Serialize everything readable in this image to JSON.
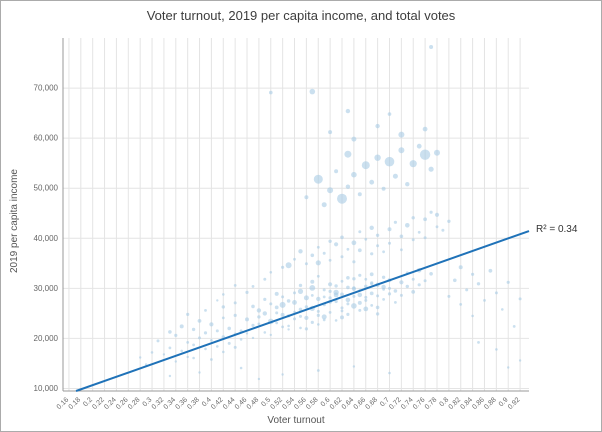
{
  "chart_data": {
    "type": "scatter",
    "title": "Voter turnout, 2019 per capita income, and total votes",
    "xlabel": "Voter turnout",
    "ylabel": "2019 per capita income",
    "xlim": [
      0.15,
      0.935
    ],
    "ylim": [
      9500,
      80000
    ],
    "grid": "on",
    "legend": "none",
    "x_ticks": [
      0.16,
      0.18,
      0.2,
      0.22,
      0.24,
      0.26,
      0.28,
      0.3,
      0.32,
      0.34,
      0.36,
      0.38,
      0.4,
      0.42,
      0.44,
      0.46,
      0.48,
      0.5,
      0.52,
      0.54,
      0.56,
      0.58,
      0.6,
      0.62,
      0.64,
      0.66,
      0.68,
      0.7,
      0.72,
      0.74,
      0.76,
      0.78,
      0.8,
      0.82,
      0.84,
      0.86,
      0.88,
      0.9,
      0.92
    ],
    "y_ticks": [
      10000,
      20000,
      30000,
      40000,
      50000,
      60000,
      70000
    ],
    "trendline": {
      "x1": 0.172,
      "y1": 9500,
      "x2": 0.935,
      "y2": 41450,
      "label": "R² = 0.34"
    },
    "colors": {
      "point": "#a9cce5",
      "point_opacity": 0.6,
      "trend": "#1f72b8",
      "grid": "#e4e4e4",
      "axis": "#999999",
      "tick_text": "#666666",
      "title_text": "#3d3d3d"
    },
    "points": [
      [
        0.45,
        21500,
        1.5
      ],
      [
        0.46,
        23800,
        2
      ],
      [
        0.47,
        20100,
        1.2
      ],
      [
        0.47,
        26400,
        1.8
      ],
      [
        0.48,
        22900,
        1.4
      ],
      [
        0.48,
        25600,
        2.2
      ],
      [
        0.49,
        21200,
        1.3
      ],
      [
        0.49,
        27800,
        1.6
      ],
      [
        0.5,
        23400,
        2.8
      ],
      [
        0.5,
        20700,
        1.2
      ],
      [
        0.51,
        25100,
        1.5
      ],
      [
        0.51,
        28900,
        2
      ],
      [
        0.52,
        22300,
        1.4
      ],
      [
        0.52,
        26700,
        3
      ],
      [
        0.53,
        24500,
        1.6
      ],
      [
        0.53,
        21800,
        1.2
      ],
      [
        0.54,
        27200,
        2.4
      ],
      [
        0.54,
        23900,
        1.5
      ],
      [
        0.55,
        25800,
        1.8
      ],
      [
        0.55,
        29400,
        2.6
      ],
      [
        0.55,
        22100,
        1.3
      ],
      [
        0.56,
        26300,
        1.7
      ],
      [
        0.56,
        24100,
        2.1
      ],
      [
        0.57,
        28600,
        1.4
      ],
      [
        0.57,
        23200,
        1.6
      ],
      [
        0.57,
        30100,
        2.9
      ],
      [
        0.58,
        25400,
        1.5
      ],
      [
        0.58,
        27900,
        2.2
      ],
      [
        0.58,
        22800,
        1.3
      ],
      [
        0.59,
        26800,
        1.8
      ],
      [
        0.59,
        29700,
        1.5
      ],
      [
        0.59,
        24300,
        2.5
      ],
      [
        0.6,
        28100,
        1.6
      ],
      [
        0.6,
        25200,
        1.4
      ],
      [
        0.6,
        30800,
        2.1
      ],
      [
        0.61,
        27400,
        1.7
      ],
      [
        0.61,
        23600,
        1.3
      ],
      [
        0.61,
        29200,
        2.7
      ],
      [
        0.62,
        26100,
        1.5
      ],
      [
        0.62,
        28800,
        1.9
      ],
      [
        0.62,
        31400,
        1.4
      ],
      [
        0.63,
        27700,
        2.3
      ],
      [
        0.63,
        24800,
        1.6
      ],
      [
        0.63,
        30200,
        1.8
      ],
      [
        0.64,
        28400,
        1.5
      ],
      [
        0.64,
        26500,
        2.8
      ],
      [
        0.64,
        31900,
        1.7
      ],
      [
        0.65,
        29600,
        1.4
      ],
      [
        0.65,
        27100,
        2
      ],
      [
        0.65,
        32600,
        1.6
      ],
      [
        0.66,
        30400,
        1.8
      ],
      [
        0.66,
        28200,
        1.5
      ],
      [
        0.66,
        25900,
        2.4
      ],
      [
        0.67,
        31100,
        1.6
      ],
      [
        0.67,
        29000,
        1.9
      ],
      [
        0.67,
        26600,
        1.4
      ],
      [
        0.68,
        30700,
        2.2
      ],
      [
        0.68,
        28500,
        1.5
      ],
      [
        0.69,
        32200,
        1.7
      ],
      [
        0.69,
        29800,
        1.4
      ],
      [
        0.7,
        31600,
        2
      ],
      [
        0.7,
        28900,
        1.6
      ],
      [
        0.46,
        21000,
        1.2
      ],
      [
        0.48,
        24300,
        1.7
      ],
      [
        0.5,
        26900,
        1.5
      ],
      [
        0.52,
        24700,
        2
      ],
      [
        0.54,
        25300,
        1.3
      ],
      [
        0.56,
        28100,
        2.5
      ],
      [
        0.58,
        24600,
        1.6
      ],
      [
        0.6,
        27300,
        1.9
      ],
      [
        0.62,
        25500,
        1.4
      ],
      [
        0.64,
        29900,
        2.1
      ],
      [
        0.66,
        27600,
        1.5
      ],
      [
        0.68,
        26200,
        1.8
      ],
      [
        0.45,
        19800,
        1.3
      ],
      [
        0.47,
        22600,
        1.6
      ],
      [
        0.49,
        25000,
        2.2
      ],
      [
        0.51,
        23100,
        1.4
      ],
      [
        0.53,
        27500,
        1.8
      ],
      [
        0.55,
        24400,
        1.5
      ],
      [
        0.57,
        26000,
        2.6
      ],
      [
        0.59,
        28300,
        1.4
      ],
      [
        0.61,
        30500,
        1.7
      ],
      [
        0.63,
        26900,
        1.5
      ],
      [
        0.65,
        28700,
        2.3
      ],
      [
        0.67,
        30900,
        1.6
      ],
      [
        0.69,
        27800,
        1.4
      ],
      [
        0.51,
        26200,
        1.9
      ],
      [
        0.54,
        29100,
        1.5
      ],
      [
        0.57,
        31300,
        2
      ],
      [
        0.6,
        29400,
        1.6
      ],
      [
        0.63,
        32100,
        1.8
      ],
      [
        0.66,
        31800,
        1.4
      ],
      [
        0.69,
        30300,
        2.2
      ],
      [
        0.52,
        28300,
        1.5
      ],
      [
        0.55,
        30600,
        1.7
      ],
      [
        0.58,
        32400,
        1.4
      ],
      [
        0.61,
        28700,
        2.4
      ],
      [
        0.64,
        30100,
        1.6
      ],
      [
        0.67,
        32800,
        1.9
      ],
      [
        0.7,
        30000,
        1.5
      ],
      [
        0.53,
        22500,
        1.3
      ],
      [
        0.56,
        21900,
        1.6
      ],
      [
        0.59,
        23700,
        1.4
      ],
      [
        0.62,
        24200,
        2
      ],
      [
        0.65,
        25600,
        1.5
      ],
      [
        0.68,
        24900,
        1.7
      ],
      [
        0.71,
        29500,
        1.8
      ],
      [
        0.71,
        27200,
        1.4
      ],
      [
        0.72,
        31200,
        2.1
      ],
      [
        0.72,
        28600,
        1.5
      ],
      [
        0.73,
        30400,
        1.7
      ],
      [
        0.73,
        33100,
        1.4
      ],
      [
        0.74,
        29300,
        1.9
      ],
      [
        0.74,
        31800,
        1.5
      ],
      [
        0.75,
        30700,
        1.6
      ],
      [
        0.75,
        33600,
        2.3
      ],
      [
        0.76,
        31500,
        1.5
      ],
      [
        0.77,
        32900,
        1.8
      ],
      [
        0.3,
        17200,
        1.3
      ],
      [
        0.31,
        19500,
        1.5
      ],
      [
        0.32,
        16800,
        1.2
      ],
      [
        0.33,
        21300,
        1.8
      ],
      [
        0.33,
        18100,
        1.4
      ],
      [
        0.34,
        20600,
        1.6
      ],
      [
        0.35,
        17500,
        1.3
      ],
      [
        0.35,
        22400,
        2
      ],
      [
        0.36,
        19200,
        1.4
      ],
      [
        0.36,
        16300,
        1.2
      ],
      [
        0.37,
        21800,
        1.7
      ],
      [
        0.37,
        18700,
        1.4
      ],
      [
        0.38,
        20100,
        1.5
      ],
      [
        0.38,
        23500,
        1.9
      ],
      [
        0.39,
        17900,
        1.3
      ],
      [
        0.39,
        21100,
        1.6
      ],
      [
        0.4,
        19600,
        1.4
      ],
      [
        0.4,
        22800,
        2.1
      ],
      [
        0.41,
        18400,
        1.3
      ],
      [
        0.41,
        21500,
        1.5
      ],
      [
        0.42,
        20300,
        1.7
      ],
      [
        0.42,
        24100,
        1.4
      ],
      [
        0.43,
        19000,
        1.5
      ],
      [
        0.43,
        22000,
        1.8
      ],
      [
        0.44,
        20900,
        1.4
      ],
      [
        0.44,
        24600,
        1.6
      ],
      [
        0.34,
        15400,
        1.2
      ],
      [
        0.37,
        16100,
        1.3
      ],
      [
        0.4,
        15800,
        1.4
      ],
      [
        0.42,
        17300,
        1.3
      ],
      [
        0.44,
        18200,
        1.5
      ],
      [
        0.36,
        24800,
        1.6
      ],
      [
        0.39,
        25600,
        1.4
      ],
      [
        0.42,
        26300,
        1.7
      ],
      [
        0.44,
        27100,
        1.5
      ],
      [
        0.52,
        34200,
        1.6
      ],
      [
        0.54,
        35800,
        1.4
      ],
      [
        0.55,
        37400,
        2.2
      ],
      [
        0.56,
        34900,
        1.5
      ],
      [
        0.57,
        36600,
        1.8
      ],
      [
        0.58,
        38200,
        1.4
      ],
      [
        0.58,
        35100,
        2.6
      ],
      [
        0.59,
        37000,
        1.5
      ],
      [
        0.6,
        39400,
        1.7
      ],
      [
        0.6,
        35600,
        1.4
      ],
      [
        0.61,
        38800,
        2.1
      ],
      [
        0.62,
        36300,
        1.5
      ],
      [
        0.62,
        40200,
        1.8
      ],
      [
        0.63,
        37800,
        1.4
      ],
      [
        0.64,
        39100,
        2.4
      ],
      [
        0.64,
        35300,
        1.6
      ],
      [
        0.65,
        41300,
        1.5
      ],
      [
        0.65,
        37600,
        1.9
      ],
      [
        0.66,
        39800,
        1.4
      ],
      [
        0.67,
        36900,
        1.6
      ],
      [
        0.67,
        42100,
        2.2
      ],
      [
        0.68,
        38500,
        1.5
      ],
      [
        0.68,
        40600,
        1.7
      ],
      [
        0.69,
        37300,
        1.4
      ],
      [
        0.7,
        41800,
        2
      ],
      [
        0.7,
        39000,
        1.5
      ],
      [
        0.71,
        43200,
        1.6
      ],
      [
        0.72,
        40400,
        1.8
      ],
      [
        0.72,
        37700,
        1.4
      ],
      [
        0.73,
        42600,
        2.3
      ],
      [
        0.74,
        39700,
        1.5
      ],
      [
        0.74,
        44100,
        1.7
      ],
      [
        0.75,
        41200,
        1.4
      ],
      [
        0.76,
        43800,
        1.9
      ],
      [
        0.76,
        40100,
        1.5
      ],
      [
        0.77,
        45200,
        1.6
      ],
      [
        0.78,
        42300,
        1.4
      ],
      [
        0.78,
        44700,
        2.1
      ],
      [
        0.79,
        41600,
        1.5
      ],
      [
        0.8,
        43400,
        1.7
      ],
      [
        0.53,
        34600,
        3
      ],
      [
        0.56,
        48200,
        2
      ],
      [
        0.58,
        51800,
        4.5
      ],
      [
        0.59,
        46700,
        2.5
      ],
      [
        0.6,
        49600,
        3
      ],
      [
        0.61,
        53400,
        2
      ],
      [
        0.62,
        47900,
        5
      ],
      [
        0.63,
        56800,
        3.5
      ],
      [
        0.63,
        50300,
        2.2
      ],
      [
        0.64,
        52700,
        2.8
      ],
      [
        0.65,
        48800,
        2
      ],
      [
        0.66,
        54600,
        4
      ],
      [
        0.67,
        51200,
        2.4
      ],
      [
        0.68,
        56100,
        3.2
      ],
      [
        0.69,
        49900,
        2
      ],
      [
        0.7,
        55300,
        4.8
      ],
      [
        0.71,
        52400,
        2.5
      ],
      [
        0.72,
        57600,
        3
      ],
      [
        0.73,
        50800,
        2.2
      ],
      [
        0.74,
        54900,
        3.6
      ],
      [
        0.75,
        58400,
        2.4
      ],
      [
        0.76,
        56700,
        5.2
      ],
      [
        0.77,
        53800,
        2.6
      ],
      [
        0.78,
        57100,
        3
      ],
      [
        0.6,
        61200,
        2
      ],
      [
        0.64,
        59800,
        2.5
      ],
      [
        0.68,
        62400,
        2.2
      ],
      [
        0.72,
        60700,
        3
      ],
      [
        0.76,
        61800,
        2.4
      ],
      [
        0.57,
        69300,
        2.8
      ],
      [
        0.5,
        69100,
        1.8
      ],
      [
        0.77,
        78200,
        2
      ],
      [
        0.63,
        65400,
        2.2
      ],
      [
        0.7,
        64800,
        1.8
      ],
      [
        0.8,
        28400,
        1.5
      ],
      [
        0.81,
        31600,
        1.8
      ],
      [
        0.82,
        26800,
        1.4
      ],
      [
        0.82,
        34200,
        2
      ],
      [
        0.83,
        29700,
        1.5
      ],
      [
        0.84,
        32800,
        1.6
      ],
      [
        0.84,
        24500,
        1.3
      ],
      [
        0.85,
        30900,
        1.7
      ],
      [
        0.86,
        27600,
        1.4
      ],
      [
        0.87,
        33500,
        1.9
      ],
      [
        0.88,
        29100,
        1.5
      ],
      [
        0.89,
        25800,
        1.3
      ],
      [
        0.9,
        31200,
        1.6
      ],
      [
        0.91,
        22400,
        1.4
      ],
      [
        0.92,
        27900,
        1.5
      ],
      [
        0.92,
        15600,
        1.2
      ],
      [
        0.88,
        17800,
        1.3
      ],
      [
        0.85,
        19200,
        1.4
      ],
      [
        0.9,
        14200,
        1.2
      ],
      [
        0.38,
        13200,
        1.2
      ],
      [
        0.45,
        14100,
        1.3
      ],
      [
        0.52,
        12800,
        1.2
      ],
      [
        0.58,
        13600,
        1.4
      ],
      [
        0.64,
        14400,
        1.2
      ],
      [
        0.7,
        13100,
        1.3
      ],
      [
        0.33,
        12500,
        1.2
      ],
      [
        0.48,
        11900,
        1.2
      ],
      [
        0.47,
        30400,
        1.4
      ],
      [
        0.49,
        31800,
        1.5
      ],
      [
        0.5,
        33200,
        1.3
      ],
      [
        0.46,
        29200,
        1.6
      ],
      [
        0.42,
        28800,
        1.3
      ],
      [
        0.44,
        30600,
        1.4
      ],
      [
        0.41,
        27600,
        1.2
      ],
      [
        0.29,
        14800,
        1.2
      ],
      [
        0.28,
        16200,
        1.2
      ]
    ]
  }
}
